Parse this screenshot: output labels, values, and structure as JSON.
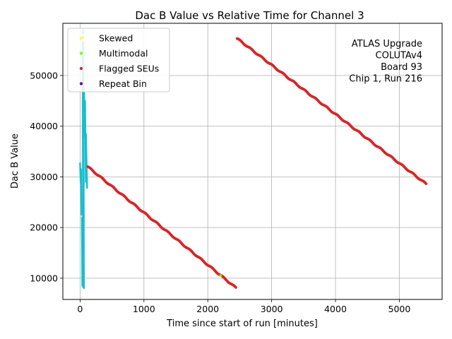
{
  "chart_data": {
    "type": "scatter",
    "title": "Dac B Value vs Relative Time for Channel 3",
    "xlabel": "Time since start of run [minutes]",
    "ylabel": "Dac B Value",
    "xlim": [
      -270,
      5670
    ],
    "ylim": [
      5800,
      60300
    ],
    "xticks": [
      0,
      1000,
      2000,
      3000,
      4000,
      5000
    ],
    "yticks": [
      10000,
      20000,
      30000,
      40000,
      50000
    ],
    "grid": true,
    "legend_position": "top-left",
    "annotation_lines": [
      "ATLAS Upgrade",
      "COLUTAv4",
      "Board 93",
      "Chip 1, Run 216"
    ],
    "series": [
      {
        "name": "",
        "role": "main",
        "color": "#17becf",
        "segments": [
          {
            "x": [
              0,
              8
            ],
            "y": [
              32700,
              29000
            ]
          },
          {
            "x": [
              15,
              22
            ],
            "y": [
              31500,
              22500
            ]
          },
          {
            "x": [
              28,
              35
            ],
            "y": [
              22000,
              8500
            ]
          },
          {
            "x": [
              40,
              48
            ],
            "y": [
              58500,
              8200
            ]
          },
          {
            "x": [
              52,
              60
            ],
            "y": [
              59000,
              8000
            ]
          },
          {
            "x": [
              62,
              75
            ],
            "y": [
              47000,
              38000
            ]
          },
          {
            "x": [
              78,
              90
            ],
            "y": [
              45000,
              29000
            ]
          },
          {
            "x": [
              92,
              110
            ],
            "y": [
              38500,
              27800
            ]
          }
        ]
      },
      {
        "name": "Skewed",
        "role": "legend",
        "color": "#ffff33",
        "points": [
          [
            45,
            58000
          ],
          [
            48,
            57000
          ]
        ]
      },
      {
        "name": "Multimodal",
        "role": "legend",
        "color": "#7fff00",
        "points": [
          [
            2200,
            10500
          ]
        ]
      },
      {
        "name": "Flagged SEUs",
        "role": "legend",
        "color": "#d62728",
        "segments": [
          {
            "x_start": 120,
            "x_end": 2440,
            "y_start": 32000,
            "y_end": 8100,
            "count": 200
          },
          {
            "x_start": 2460,
            "x_end": 5420,
            "y_start": 57300,
            "y_end": 28600,
            "count": 260
          }
        ]
      },
      {
        "name": "Repeat Bin",
        "role": "legend",
        "color": "#800080",
        "points": []
      }
    ]
  }
}
